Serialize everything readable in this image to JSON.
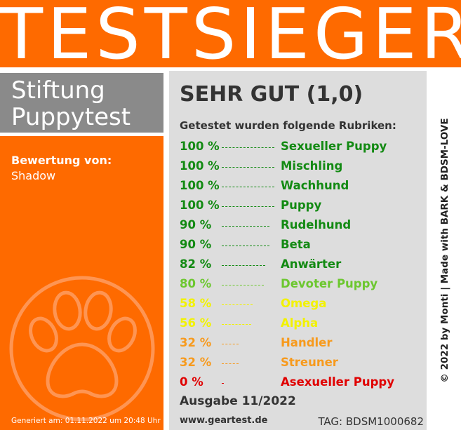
{
  "banner": {
    "title": "TESTSIEGER"
  },
  "organization": {
    "line1": "Stiftung",
    "line2": "Puppytest"
  },
  "rated_by": {
    "label": "Bewertung von:",
    "name": "Shadow"
  },
  "generated": "Generiert am: 01.11.2022 um 20:48 Uhr",
  "grade": "SEHR GUT (1,0)",
  "intro": "Getestet wurden folgende Rubriken:",
  "categories": [
    {
      "percent_label": "100 %",
      "percent": 100,
      "name": "Sexueller Puppy",
      "color": "#138a13"
    },
    {
      "percent_label": "100 %",
      "percent": 100,
      "name": "Mischling",
      "color": "#138a13"
    },
    {
      "percent_label": "100 %",
      "percent": 100,
      "name": "Wachhund",
      "color": "#138a13"
    },
    {
      "percent_label": "100 %",
      "percent": 100,
      "name": "Puppy",
      "color": "#138a13"
    },
    {
      "percent_label": "90 %",
      "percent": 90,
      "name": "Rudelhund",
      "color": "#138a13"
    },
    {
      "percent_label": "90 %",
      "percent": 90,
      "name": "Beta",
      "color": "#138a13"
    },
    {
      "percent_label": "82 %",
      "percent": 82,
      "name": "Anwärter",
      "color": "#138a13"
    },
    {
      "percent_label": "80 %",
      "percent": 80,
      "name": "Devoter Puppy",
      "color": "#6cc72f"
    },
    {
      "percent_label": "58 %",
      "percent": 58,
      "name": "Omega",
      "color": "#f2f200"
    },
    {
      "percent_label": "56 %",
      "percent": 56,
      "name": "Alpha",
      "color": "#f2f200"
    },
    {
      "percent_label": "32 %",
      "percent": 32,
      "name": "Handler",
      "color": "#f79a1d"
    },
    {
      "percent_label": "32 %",
      "percent": 32,
      "name": "Streuner",
      "color": "#f79a1d"
    },
    {
      "percent_label": "0 %",
      "percent": 0,
      "name": "Asexueller Puppy",
      "color": "#e00000"
    }
  ],
  "issue": "Ausgabe 11/2022",
  "website": "www.geartest.de",
  "tag": "TAG: BDSM1000682",
  "side_credit": "© 2022 by Monti | Made with BARK & BDSM-LOVE",
  "colors": {
    "banner_orange": "#fe6a00",
    "org_gray": "#8a8a8a",
    "panel_gray": "#dddddd"
  },
  "icons": {
    "paw": "paw-print-icon"
  }
}
